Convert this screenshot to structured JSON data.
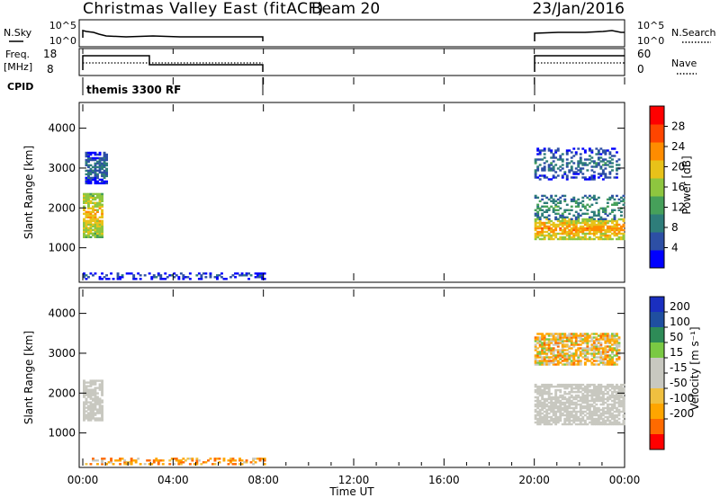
{
  "header": {
    "title": "Christmas Valley East (fitACF)",
    "beam": "Beam 20",
    "date": "23/Jan/2016"
  },
  "status_panels": {
    "nsky_label": "N.Sky",
    "nsearch_label": "N.Search",
    "noise_ticks": [
      "10^5",
      "10^0"
    ],
    "freq_label": "Freq.",
    "freq_unit": "[MHz]",
    "freq_ticks": [
      "18",
      "8"
    ],
    "nave_label": "Nave",
    "nave_ticks": [
      "60",
      "0"
    ],
    "cpid_label": "CPID",
    "cpid_value": "themis 3300 RF"
  },
  "colors": {
    "power_scale": [
      "#0000ff",
      "#2d4fa5",
      "#2e7d7a",
      "#46a05a",
      "#8ec63f",
      "#e8c219",
      "#ff8c00",
      "#ff4500",
      "#ff0000"
    ],
    "velocity_scale": [
      "#ff0000",
      "#ff6a00",
      "#ffa500",
      "#f0c040",
      "#c8c8c0",
      "#c8c8c0",
      "#7ac943",
      "#2e8b57",
      "#1f4fa0",
      "#1a2fc0"
    ]
  },
  "chart_data": [
    {
      "type": "heatmap",
      "panel": "power",
      "ylabel": "Slant Range [km]",
      "yticks": [
        "4000",
        "3000",
        "2000",
        "1000"
      ],
      "ylim": [
        180,
        4600
      ],
      "colorbar_label": "Power [dB]",
      "colorbar_ticks": [
        "28",
        "24",
        "20",
        "16",
        "12",
        "8",
        "4"
      ],
      "colorbar_range": [
        0,
        32
      ],
      "echo_regions": [
        {
          "t_start": 0.0,
          "t_end": 0.8,
          "r_start": 1250,
          "r_end": 2350,
          "power_db": 24
        },
        {
          "t_start": 0.1,
          "t_end": 1.0,
          "r_start": 2600,
          "r_end": 3400,
          "power_db": 10
        },
        {
          "t_start": 20.0,
          "t_end": 24.0,
          "r_start": 1200,
          "r_end": 1700,
          "power_db": 26
        },
        {
          "t_start": 20.0,
          "t_end": 24.0,
          "r_start": 1700,
          "r_end": 2300,
          "power_db": 14
        },
        {
          "t_start": 20.0,
          "t_end": 23.8,
          "r_start": 2700,
          "r_end": 3500,
          "power_db": 10
        },
        {
          "t_start": 0.0,
          "t_end": 8.0,
          "r_start": 200,
          "r_end": 350,
          "power_db": 8
        }
      ]
    },
    {
      "type": "heatmap",
      "panel": "velocity",
      "ylabel": "Slant Range [km]",
      "yticks": [
        "4000",
        "3000",
        "2000",
        "1000"
      ],
      "ylim": [
        180,
        4600
      ],
      "colorbar_label": "Velocity [m s⁻¹]",
      "colorbar_ticks": [
        "200",
        "100",
        "50",
        "15",
        "-15",
        "-50",
        "-100",
        "-200"
      ],
      "echo_regions": [
        {
          "t_start": 0.0,
          "t_end": 0.8,
          "r_start": 1300,
          "r_end": 2300,
          "velocity": 0
        },
        {
          "t_start": 20.0,
          "t_end": 24.0,
          "r_start": 1200,
          "r_end": 2200,
          "velocity": 0
        },
        {
          "t_start": 20.0,
          "t_end": 23.8,
          "r_start": 2700,
          "r_end": 3500,
          "velocity": -30
        },
        {
          "t_start": 0.0,
          "t_end": 8.0,
          "r_start": 200,
          "r_end": 350,
          "velocity": -60
        }
      ]
    }
  ],
  "xaxis": {
    "label": "Time UT",
    "ticks": [
      "00:00",
      "04:00",
      "08:00",
      "12:00",
      "16:00",
      "20:00",
      "00:00"
    ],
    "range_hours": [
      0,
      24
    ]
  }
}
